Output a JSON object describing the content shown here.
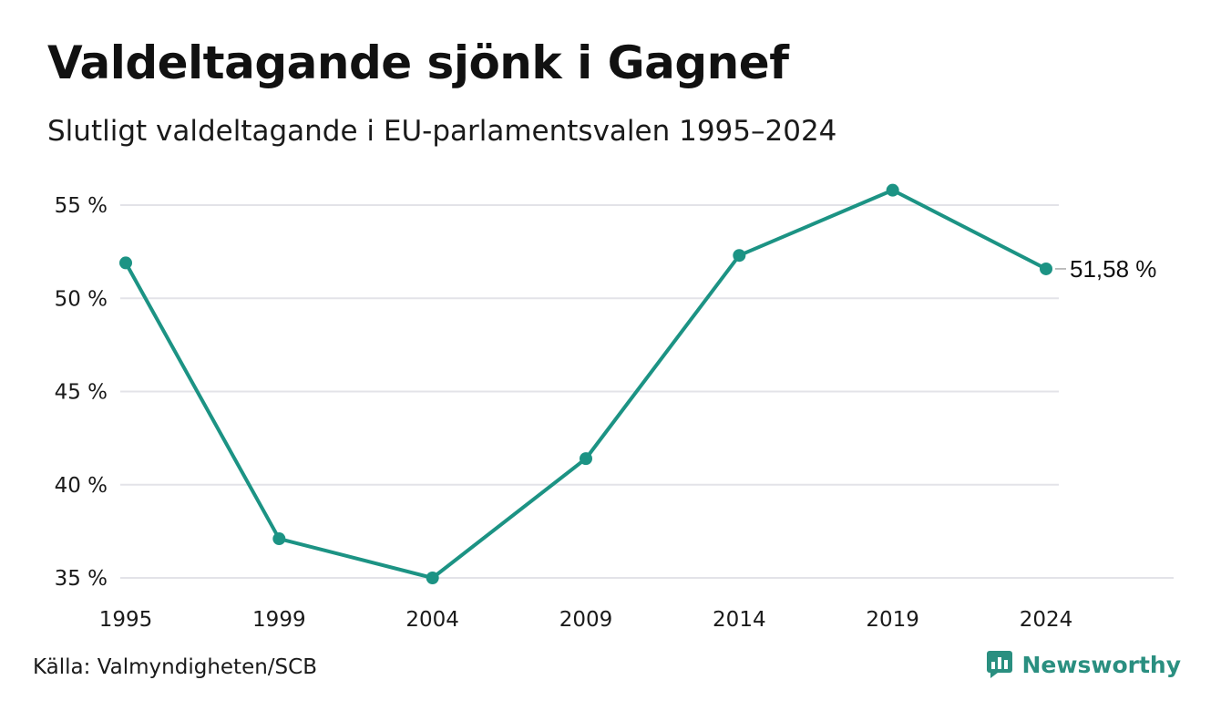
{
  "title": "Valdeltagande sjönk i Gagnef",
  "subtitle": "Slutligt valdeltagande i EU-parlamentsvalen 1995–2024",
  "source": "Källa: Valmyndigheten/SCB",
  "brand": {
    "name": "Newsworthy",
    "icon": "newsworthy-logo-icon"
  },
  "colors": {
    "line": "#1c9384",
    "grid": "#e3e3e8",
    "text": "#1a1a1a",
    "brand": "#2a8f80"
  },
  "chart_data": {
    "type": "line",
    "title": "Valdeltagande sjönk i Gagnef",
    "subtitle": "Slutligt valdeltagande i EU-parlamentsvalen 1995–2024",
    "x": [
      "1995",
      "1999",
      "2004",
      "2009",
      "2014",
      "2019",
      "2024"
    ],
    "series": [
      {
        "values": [
          51.9,
          37.1,
          35.0,
          41.4,
          52.3,
          55.8,
          51.58
        ]
      }
    ],
    "ylim": [
      35,
      55
    ],
    "yticks": [
      35,
      40,
      45,
      50,
      55
    ],
    "ytick_labels": [
      "35 %",
      "40 %",
      "45 %",
      "50 %",
      "55 %"
    ],
    "end_label": "51,58 %",
    "grid": true,
    "legend": "none"
  }
}
